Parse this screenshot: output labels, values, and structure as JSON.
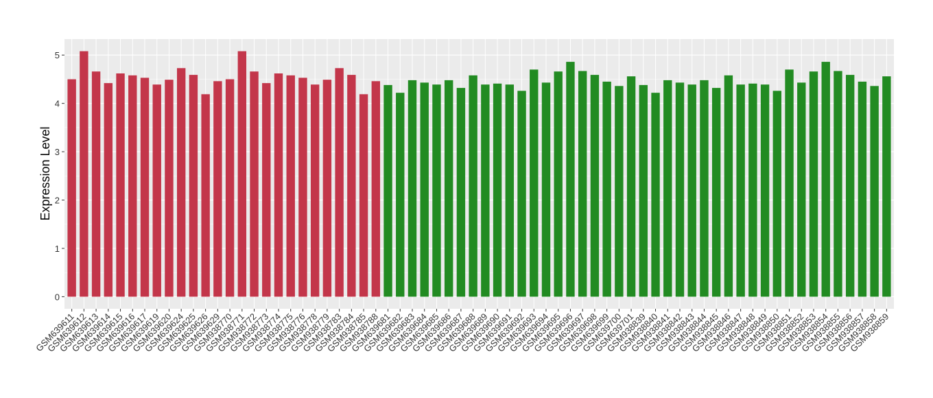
{
  "chart_data": {
    "type": "bar",
    "y_label": "Expression Level",
    "categories": [
      "GSM639611",
      "GSM639612",
      "GSM639613",
      "GSM639614",
      "GSM639615",
      "GSM639616",
      "GSM639617",
      "GSM639619",
      "GSM639620",
      "GSM639624",
      "GSM639625",
      "GSM639626",
      "GSM639629",
      "GSM938770",
      "GSM938771",
      "GSM938772",
      "GSM938773",
      "GSM938774",
      "GSM938775",
      "GSM938776",
      "GSM938778",
      "GSM938779",
      "GSM938783",
      "GSM938784",
      "GSM938785",
      "GSM938788",
      "GSM639681",
      "GSM639682",
      "GSM639683",
      "GSM639684",
      "GSM639685",
      "GSM639686",
      "GSM639687",
      "GSM639688",
      "GSM639689",
      "GSM639690",
      "GSM639691",
      "GSM639692",
      "GSM639693",
      "GSM639694",
      "GSM639695",
      "GSM639696",
      "GSM639697",
      "GSM639698",
      "GSM639699",
      "GSM639700",
      "GSM639701",
      "GSM938839",
      "GSM938840",
      "GSM938841",
      "GSM938842",
      "GSM938843",
      "GSM938844",
      "GSM938845",
      "GSM938846",
      "GSM938847",
      "GSM938848",
      "GSM938849",
      "GSM938850",
      "GSM938851",
      "GSM938852",
      "GSM938853",
      "GSM938854",
      "GSM938855",
      "GSM938856",
      "GSM938857",
      "GSM938858",
      "GSM938859"
    ],
    "values": [
      4.5,
      5.08,
      4.66,
      4.42,
      4.62,
      4.58,
      4.53,
      4.39,
      4.49,
      4.73,
      4.59,
      4.19,
      4.46,
      4.5,
      5.08,
      4.66,
      4.42,
      4.62,
      4.58,
      4.53,
      4.39,
      4.49,
      4.73,
      4.59,
      4.19,
      4.46,
      4.38,
      4.22,
      4.48,
      4.43,
      4.39,
      4.48,
      4.32,
      4.58,
      4.39,
      4.41,
      4.39,
      4.26,
      4.7,
      4.43,
      4.66,
      4.86,
      4.67,
      4.59,
      4.45,
      4.36,
      4.56,
      4.38,
      4.22,
      4.48,
      4.43,
      4.39,
      4.48,
      4.32,
      4.58,
      4.39,
      4.41,
      4.39,
      4.26,
      4.7,
      4.43,
      4.66,
      4.86,
      4.67,
      4.59,
      4.45,
      4.36,
      4.56
    ],
    "colors": [
      "#c3364a",
      "#c3364a",
      "#c3364a",
      "#c3364a",
      "#c3364a",
      "#c3364a",
      "#c3364a",
      "#c3364a",
      "#c3364a",
      "#c3364a",
      "#c3364a",
      "#c3364a",
      "#c3364a",
      "#c3364a",
      "#c3364a",
      "#c3364a",
      "#c3364a",
      "#c3364a",
      "#c3364a",
      "#c3364a",
      "#c3364a",
      "#c3364a",
      "#c3364a",
      "#c3364a",
      "#c3364a",
      "#c3364a",
      "#228b22",
      "#228b22",
      "#228b22",
      "#228b22",
      "#228b22",
      "#228b22",
      "#228b22",
      "#228b22",
      "#228b22",
      "#228b22",
      "#228b22",
      "#228b22",
      "#228b22",
      "#228b22",
      "#228b22",
      "#228b22",
      "#228b22",
      "#228b22",
      "#228b22",
      "#228b22",
      "#228b22",
      "#228b22",
      "#228b22",
      "#228b22",
      "#228b22",
      "#228b22",
      "#228b22",
      "#228b22",
      "#228b22",
      "#228b22",
      "#228b22",
      "#228b22",
      "#228b22",
      "#228b22",
      "#228b22",
      "#228b22",
      "#228b22",
      "#228b22",
      "#228b22",
      "#228b22",
      "#228b22",
      "#228b22"
    ],
    "ylim": [
      -0.25,
      5.33
    ],
    "yticks": [
      0,
      1,
      2,
      3,
      4,
      5
    ],
    "grid": true
  }
}
